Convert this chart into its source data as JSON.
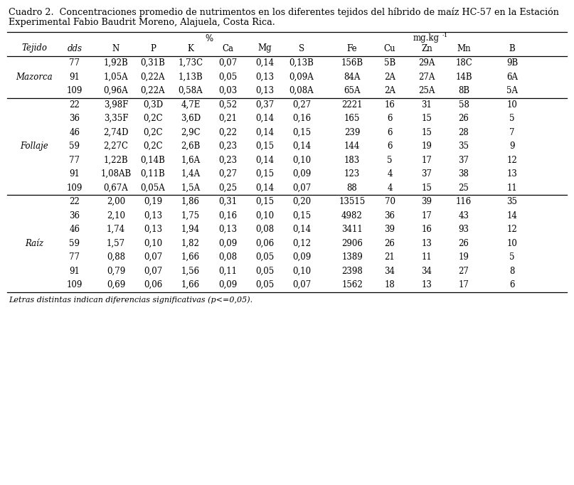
{
  "title_line1": "Cuadro 2.  Concentraciones promedio de nutrimentos en los diferentes tejidos del híbrido de maíz HC-57 en la Estación",
  "title_line2": "Experimental Fabio Baudrit Moreno, Alajuela, Costa Rica.",
  "footnote": "Letras distintas indican diferencias significativas (p<=0,05).",
  "col_headers": [
    "Tejido",
    "dds",
    "N",
    "P",
    "K",
    "Ca",
    "Mg",
    "S",
    "Fe",
    "Cu",
    "Zn",
    "Mn",
    "B"
  ],
  "unit_pct_label": "%",
  "unit_mg_label": "mg.kg",
  "unit_mg_exp": "-1",
  "sections": [
    {
      "name": "Mazorca",
      "label_row": 1,
      "rows": [
        [
          "77",
          "1,92B",
          "0,31B",
          "1,73C",
          "0,07",
          "0,14",
          "0,13B",
          "156B",
          "5B",
          "29A",
          "18C",
          "9B"
        ],
        [
          "91",
          "1,05A",
          "0,22A",
          "1,13B",
          "0,05",
          "0,13",
          "0,09A",
          "84A",
          "2A",
          "27A",
          "14B",
          "6A"
        ],
        [
          "109",
          "0,96A",
          "0,22A",
          "0,58A",
          "0,03",
          "0,13",
          "0,08A",
          "65A",
          "2A",
          "25A",
          "8B",
          "5A"
        ]
      ]
    },
    {
      "name": "Follaje",
      "label_row": 3,
      "rows": [
        [
          "22",
          "3,98F",
          "0,3D",
          "4,7E",
          "0,52",
          "0,37",
          "0,27",
          "2221",
          "16",
          "31",
          "58",
          "10"
        ],
        [
          "36",
          "3,35F",
          "0,2C",
          "3,6D",
          "0,21",
          "0,14",
          "0,16",
          "165",
          "6",
          "15",
          "26",
          "5"
        ],
        [
          "46",
          "2,74D",
          "0,2C",
          "2,9C",
          "0,22",
          "0,14",
          "0,15",
          "239",
          "6",
          "15",
          "28",
          "7"
        ],
        [
          "59",
          "2,27C",
          "0,2C",
          "2,6B",
          "0,23",
          "0,15",
          "0,14",
          "144",
          "6",
          "19",
          "35",
          "9"
        ],
        [
          "77",
          "1,22B",
          "0,14B",
          "1,6A",
          "0,23",
          "0,14",
          "0,10",
          "183",
          "5",
          "17",
          "37",
          "12"
        ],
        [
          "91",
          "1,08AB",
          "0,11B",
          "1,4A",
          "0,27",
          "0,15",
          "0,09",
          "123",
          "4",
          "37",
          "38",
          "13"
        ],
        [
          "109",
          "0,67A",
          "0,05A",
          "1,5A",
          "0,25",
          "0,14",
          "0,07",
          "88",
          "4",
          "15",
          "25",
          "11"
        ]
      ]
    },
    {
      "name": "Raíz",
      "label_row": 3,
      "rows": [
        [
          "22",
          "2,00",
          "0,19",
          "1,86",
          "0,31",
          "0,15",
          "0,20",
          "13515",
          "70",
          "39",
          "116",
          "35"
        ],
        [
          "36",
          "2,10",
          "0,13",
          "1,75",
          "0,16",
          "0,10",
          "0,15",
          "4982",
          "36",
          "17",
          "43",
          "14"
        ],
        [
          "46",
          "1,74",
          "0,13",
          "1,94",
          "0,13",
          "0,08",
          "0,14",
          "3411",
          "39",
          "16",
          "93",
          "12"
        ],
        [
          "59",
          "1,57",
          "0,10",
          "1,82",
          "0,09",
          "0,06",
          "0,12",
          "2906",
          "26",
          "13",
          "26",
          "10"
        ],
        [
          "77",
          "0,88",
          "0,07",
          "1,66",
          "0,08",
          "0,05",
          "0,09",
          "1389",
          "21",
          "11",
          "19",
          "5"
        ],
        [
          "91",
          "0,79",
          "0,07",
          "1,56",
          "0,11",
          "0,05",
          "0,10",
          "2398",
          "34",
          "34",
          "27",
          "8"
        ],
        [
          "109",
          "0,69",
          "0,06",
          "1,66",
          "0,09",
          "0,05",
          "0,07",
          "1562",
          "18",
          "13",
          "17",
          "6"
        ]
      ]
    }
  ],
  "text_color": "#000000",
  "bg_color": "#ffffff",
  "font_size": 8.5,
  "title_font_size": 9.2
}
